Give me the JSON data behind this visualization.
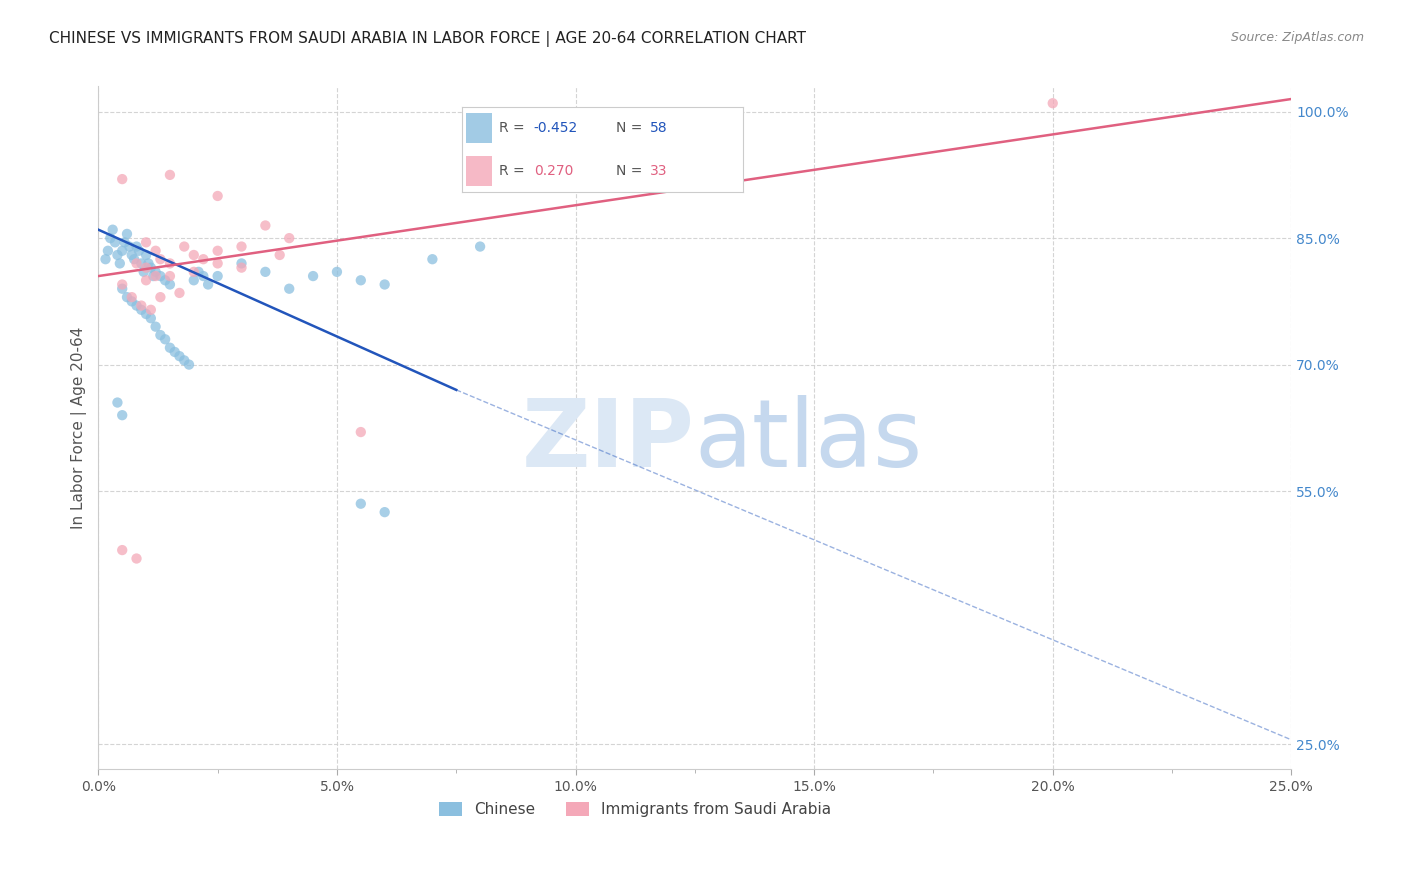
{
  "title": "CHINESE VS IMMIGRANTS FROM SAUDI ARABIA IN LABOR FORCE | AGE 20-64 CORRELATION CHART",
  "source": "Source: ZipAtlas.com",
  "ylabel": "In Labor Force | Age 20-64",
  "x_tick_labels": [
    "0.0%",
    "",
    "5.0%",
    "",
    "10.0%",
    "",
    "15.0%",
    "",
    "20.0%",
    "",
    "25.0%"
  ],
  "x_tick_vals": [
    0.0,
    2.5,
    5.0,
    7.5,
    10.0,
    12.5,
    15.0,
    17.5,
    20.0,
    22.5,
    25.0
  ],
  "x_minor_ticks": [
    2.5,
    7.5,
    12.5,
    17.5,
    22.5
  ],
  "y_right_labels": [
    "100.0%",
    "85.0%",
    "70.0%",
    "55.0%",
    "25.0%"
  ],
  "y_right_vals": [
    100.0,
    85.0,
    70.0,
    55.0,
    25.0
  ],
  "y_grid_vals": [
    100.0,
    85.0,
    70.0,
    55.0,
    25.0
  ],
  "xlim": [
    0.0,
    25.0
  ],
  "ylim": [
    22.0,
    103.0
  ],
  "chinese_dots": [
    [
      0.15,
      82.5
    ],
    [
      0.2,
      83.5
    ],
    [
      0.25,
      85.0
    ],
    [
      0.3,
      86.0
    ],
    [
      0.35,
      84.5
    ],
    [
      0.4,
      83.0
    ],
    [
      0.45,
      82.0
    ],
    [
      0.5,
      83.5
    ],
    [
      0.55,
      84.5
    ],
    [
      0.6,
      85.5
    ],
    [
      0.65,
      84.0
    ],
    [
      0.7,
      83.0
    ],
    [
      0.75,
      82.5
    ],
    [
      0.8,
      84.0
    ],
    [
      0.85,
      83.5
    ],
    [
      0.9,
      82.0
    ],
    [
      0.95,
      81.0
    ],
    [
      1.0,
      83.0
    ],
    [
      1.05,
      82.0
    ],
    [
      1.1,
      81.5
    ],
    [
      1.15,
      80.5
    ],
    [
      1.2,
      81.0
    ],
    [
      1.3,
      80.5
    ],
    [
      1.4,
      80.0
    ],
    [
      1.5,
      79.5
    ],
    [
      0.5,
      79.0
    ],
    [
      0.6,
      78.0
    ],
    [
      0.7,
      77.5
    ],
    [
      0.8,
      77.0
    ],
    [
      0.9,
      76.5
    ],
    [
      1.0,
      76.0
    ],
    [
      1.1,
      75.5
    ],
    [
      1.2,
      74.5
    ],
    [
      1.3,
      73.5
    ],
    [
      1.4,
      73.0
    ],
    [
      1.5,
      72.0
    ],
    [
      1.6,
      71.5
    ],
    [
      1.7,
      71.0
    ],
    [
      1.8,
      70.5
    ],
    [
      1.9,
      70.0
    ],
    [
      2.0,
      80.0
    ],
    [
      2.1,
      81.0
    ],
    [
      2.2,
      80.5
    ],
    [
      2.3,
      79.5
    ],
    [
      2.5,
      80.5
    ],
    [
      3.0,
      82.0
    ],
    [
      3.5,
      81.0
    ],
    [
      4.5,
      80.5
    ],
    [
      5.0,
      81.0
    ],
    [
      5.5,
      80.0
    ],
    [
      6.0,
      79.5
    ],
    [
      7.0,
      82.5
    ],
    [
      8.0,
      84.0
    ],
    [
      4.0,
      79.0
    ],
    [
      5.5,
      53.5
    ],
    [
      6.0,
      52.5
    ],
    [
      0.4,
      65.5
    ],
    [
      0.5,
      64.0
    ]
  ],
  "saudi_dots": [
    [
      0.5,
      92.0
    ],
    [
      1.5,
      92.5
    ],
    [
      2.5,
      90.0
    ],
    [
      3.5,
      86.5
    ],
    [
      4.0,
      85.0
    ],
    [
      1.0,
      84.5
    ],
    [
      1.2,
      83.5
    ],
    [
      1.8,
      84.0
    ],
    [
      2.0,
      83.0
    ],
    [
      2.2,
      82.5
    ],
    [
      0.8,
      82.0
    ],
    [
      1.0,
      81.5
    ],
    [
      1.5,
      80.5
    ],
    [
      2.5,
      83.5
    ],
    [
      3.0,
      84.0
    ],
    [
      1.3,
      78.0
    ],
    [
      1.7,
      78.5
    ],
    [
      3.8,
      83.0
    ],
    [
      5.5,
      62.0
    ],
    [
      0.5,
      79.5
    ],
    [
      0.7,
      78.0
    ],
    [
      0.9,
      77.0
    ],
    [
      1.1,
      76.5
    ],
    [
      0.5,
      48.0
    ],
    [
      1.2,
      80.5
    ],
    [
      2.5,
      82.0
    ],
    [
      3.0,
      81.5
    ],
    [
      1.0,
      80.0
    ],
    [
      2.0,
      81.0
    ],
    [
      1.5,
      82.0
    ],
    [
      20.0,
      101.0
    ],
    [
      1.3,
      82.5
    ],
    [
      0.8,
      47.0
    ]
  ],
  "blue_line_solid": {
    "x0": 0.0,
    "y0": 86.0,
    "x1": 7.5,
    "y1": 67.0
  },
  "blue_line_dashed": {
    "x0": 7.5,
    "y0": 67.0,
    "x1": 25.0,
    "y1": 25.5
  },
  "pink_line": {
    "x0": 0.0,
    "y0": 80.5,
    "x1": 25.0,
    "y1": 101.5
  },
  "dot_size": 55,
  "blue_color": "#8bbfdf",
  "pink_color": "#f4a8b8",
  "blue_line_color": "#2255bb",
  "pink_line_color": "#e06080",
  "watermark_zip": "ZIP",
  "watermark_atlas": "atlas",
  "watermark_zip_color": "#dce8f5",
  "watermark_atlas_color": "#c5d8ee",
  "background_color": "#ffffff",
  "grid_color": "#d0d0d0",
  "right_yaxis_color": "#4488cc",
  "legend_r1": "R = -0.452",
  "legend_n1": "N = 58",
  "legend_r2": "R =  0.270",
  "legend_n2": "N = 33"
}
